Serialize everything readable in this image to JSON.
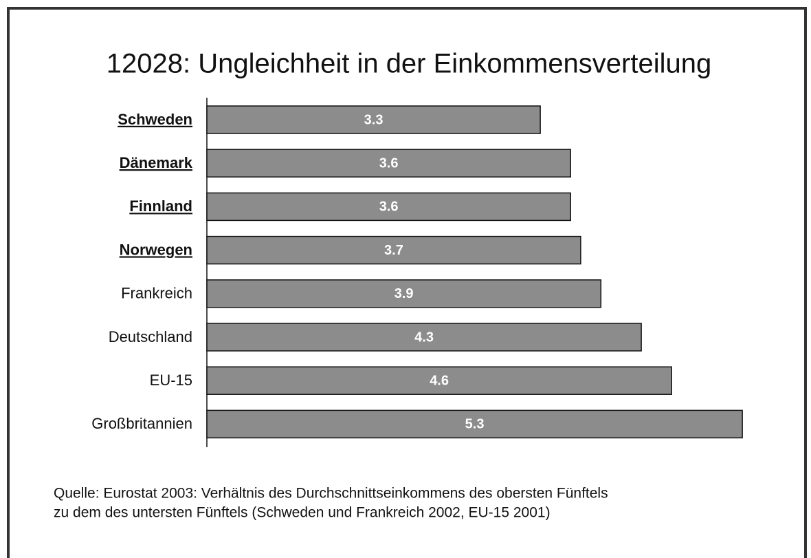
{
  "chart_data": {
    "type": "hbar",
    "title": "12028: Ungleichheit in der Einkommensverteilung",
    "categories": [
      "Schweden",
      "Dänemark",
      "Finnland",
      "Norwegen",
      "Frankreich",
      "Deutschland",
      "EU-15",
      "Großbritannien"
    ],
    "emphasized": [
      true,
      true,
      true,
      true,
      false,
      false,
      false,
      false
    ],
    "values": [
      3.3,
      3.6,
      3.6,
      3.7,
      3.9,
      4.3,
      4.6,
      5.3
    ],
    "color": "#8c8c8c",
    "xlim": [
      0,
      5.5
    ],
    "source": [
      "Quelle: Eurostat 2003: Verhältnis des Durchschnittseinkommens des obersten Fünftels",
      "zu dem des untersten Fünftels (Schweden und Frankreich 2002, EU-15 2001)"
    ]
  }
}
